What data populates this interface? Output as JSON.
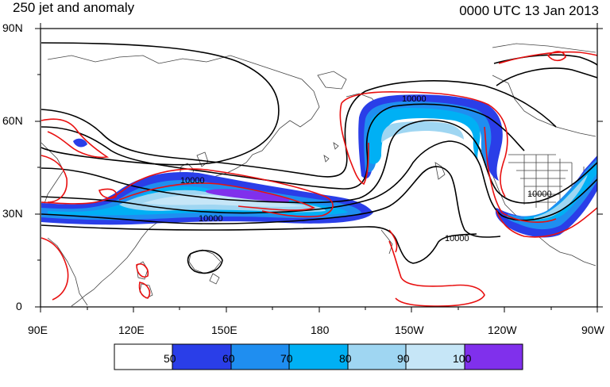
{
  "header": {
    "title_left": "250 jet and anomaly",
    "title_right": "0000 UTC 13 Jan 2013"
  },
  "axes": {
    "lat_labels": [
      "90N",
      "60N",
      "30N",
      "0"
    ],
    "lon_labels": [
      "90E",
      "120E",
      "150E",
      "180",
      "150W",
      "120W",
      "90W"
    ],
    "lat_range": [
      0,
      90
    ],
    "lon_range": [
      "90E",
      "90W"
    ]
  },
  "contour_labels": [
    "10000",
    "10000",
    "10000",
    "10000",
    "10000"
  ],
  "colorbar": {
    "labels": [
      "50",
      "60",
      "70",
      "80",
      "90",
      "100"
    ],
    "colors": [
      "#ffffff",
      "#2a3ee8",
      "#1f8ef0",
      "#00b0f4",
      "#9fd6f2",
      "#c6e6f7",
      "#8030ec"
    ]
  },
  "colors": {
    "anomaly_contour": "#e81010",
    "height_contour": "#000000"
  }
}
